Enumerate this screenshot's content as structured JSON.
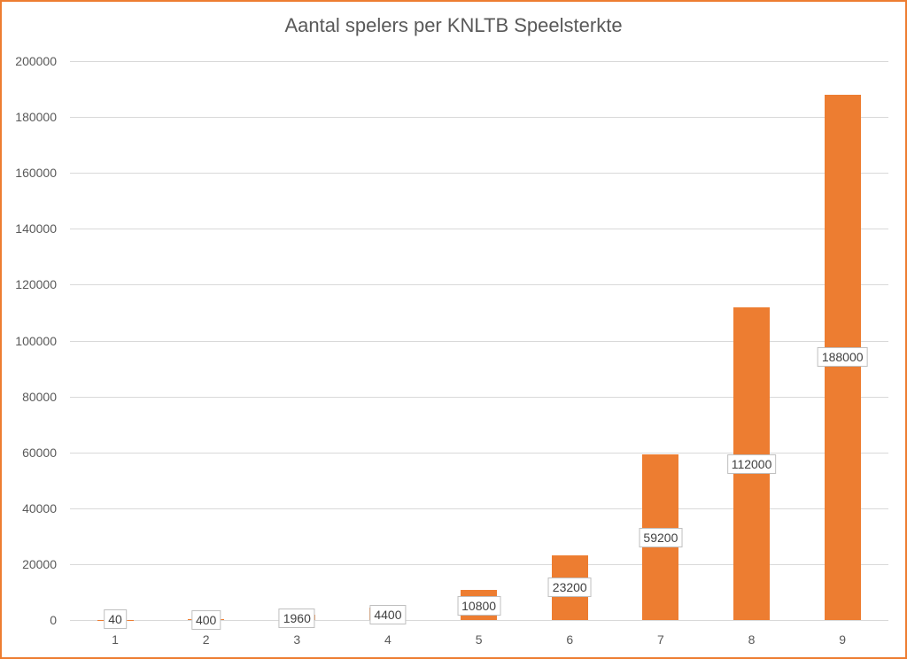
{
  "chart_data": {
    "type": "bar",
    "title": "Aantal spelers per KNLTB Speelsterkte",
    "xlabel": "",
    "ylabel": "",
    "categories": [
      "1",
      "2",
      "3",
      "4",
      "5",
      "6",
      "7",
      "8",
      "9"
    ],
    "values": [
      40,
      400,
      1960,
      4400,
      10800,
      23200,
      59200,
      112000,
      188000
    ],
    "data_labels": [
      "40",
      "400",
      "1960",
      "4400",
      "10800",
      "23200",
      "59200",
      "112000",
      "188000"
    ],
    "ylim": [
      0,
      200000
    ],
    "yticks": [
      "0",
      "20000",
      "40000",
      "60000",
      "80000",
      "100000",
      "120000",
      "140000",
      "160000",
      "180000",
      "200000"
    ],
    "grid": true,
    "legend": "none",
    "colors": {
      "bar": "#ED7D31",
      "border": "#ED7D31",
      "grid": "#D9D9D9",
      "text": "#595959"
    }
  }
}
